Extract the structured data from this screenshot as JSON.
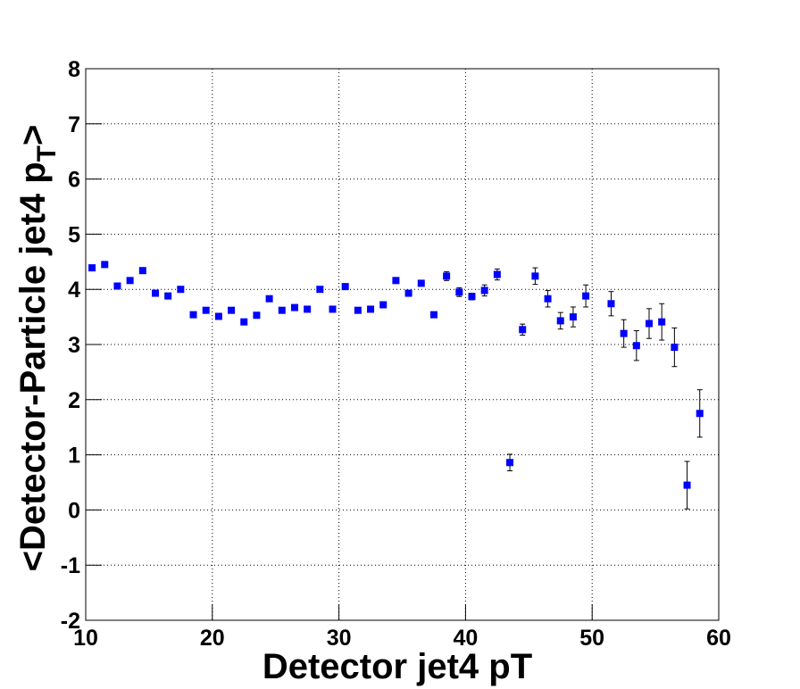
{
  "chart_data": {
    "type": "scatter",
    "xlabel": "Detector jet4 pT",
    "ylabel": {
      "main": "<Detector-Particle jet4 p",
      "sub": "T",
      "end": ">"
    },
    "xlim": [
      10,
      60
    ],
    "ylim": [
      -2,
      8
    ],
    "xticks": [
      10,
      20,
      30,
      40,
      50,
      60
    ],
    "yticks": [
      -2,
      -1,
      0,
      1,
      2,
      3,
      4,
      5,
      6,
      7,
      8
    ],
    "grid": true,
    "color": "#0000ff",
    "x": [
      10.5,
      11.5,
      12.5,
      13.5,
      14.5,
      15.5,
      16.5,
      17.5,
      18.5,
      19.5,
      20.5,
      21.5,
      22.5,
      23.5,
      24.5,
      25.5,
      26.5,
      27.5,
      28.5,
      29.5,
      30.5,
      31.5,
      32.5,
      33.5,
      34.5,
      35.5,
      36.5,
      37.5,
      38.5,
      39.5,
      40.5,
      41.5,
      42.5,
      43.5,
      44.5,
      45.5,
      46.5,
      47.5,
      48.5,
      49.5,
      51.5,
      52.5,
      53.5,
      54.5,
      55.5,
      56.5,
      57.5,
      58.5
    ],
    "values": [
      4.39,
      4.45,
      4.06,
      4.16,
      4.34,
      3.93,
      3.88,
      4.0,
      3.54,
      3.62,
      3.51,
      3.62,
      3.41,
      3.53,
      3.83,
      3.62,
      3.67,
      3.64,
      4.0,
      3.64,
      4.05,
      3.62,
      3.64,
      3.72,
      4.16,
      3.93,
      4.11,
      3.54,
      4.24,
      3.95,
      3.87,
      3.98,
      4.27,
      0.86,
      3.27,
      4.24,
      3.83,
      3.43,
      3.5,
      3.88,
      3.74,
      3.2,
      2.98,
      3.38,
      3.41,
      2.95,
      0.45,
      1.75
    ],
    "errors": [
      null,
      null,
      null,
      null,
      null,
      null,
      null,
      null,
      null,
      null,
      null,
      null,
      null,
      null,
      null,
      null,
      null,
      null,
      null,
      null,
      null,
      null,
      null,
      null,
      null,
      null,
      null,
      null,
      0.08,
      0.08,
      0.06,
      0.1,
      0.1,
      0.15,
      0.1,
      0.15,
      0.15,
      0.15,
      0.18,
      0.2,
      0.22,
      0.25,
      0.27,
      0.27,
      0.33,
      0.35,
      0.43,
      0.43
    ]
  }
}
